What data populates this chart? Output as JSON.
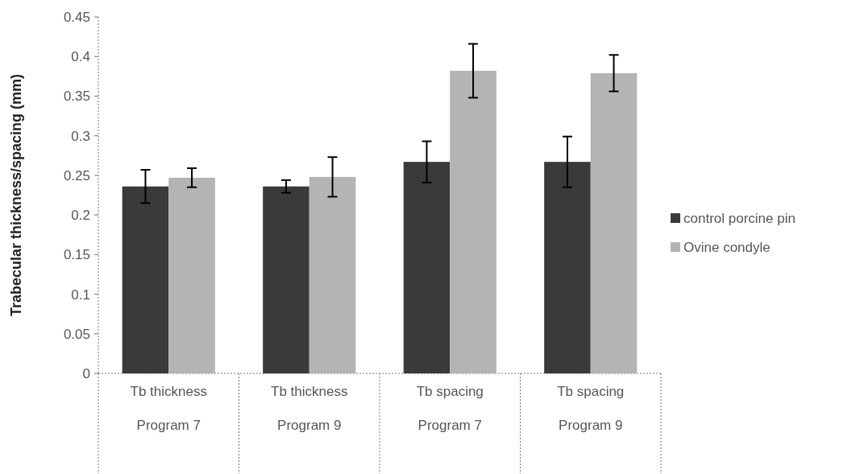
{
  "chart_data": {
    "type": "bar",
    "ylabel": "Trabecular thickness/spacing (mm)",
    "categories": [
      "Tb thickness\nProgram 7",
      "Tb thickness\nProgram 9",
      "Tb spacing\nProgram 7",
      "Tb spacing\nProgram 9"
    ],
    "series": [
      {
        "name": "control porcine pin",
        "color": "#3a3a3a",
        "values": [
          0.236,
          0.236,
          0.267,
          0.267
        ],
        "errors": [
          0.021,
          0.008,
          0.026,
          0.032
        ]
      },
      {
        "name": "Ovine condyle",
        "color": "#b4b4b4",
        "values": [
          0.247,
          0.248,
          0.382,
          0.379
        ],
        "errors": [
          0.012,
          0.025,
          0.034,
          0.023
        ]
      }
    ],
    "ylim": [
      0,
      0.45
    ],
    "yticks": [
      0,
      0.05,
      0.1,
      0.15,
      0.2,
      0.25,
      0.3,
      0.35,
      0.4,
      0.45
    ],
    "grid": false,
    "legend": "right"
  }
}
